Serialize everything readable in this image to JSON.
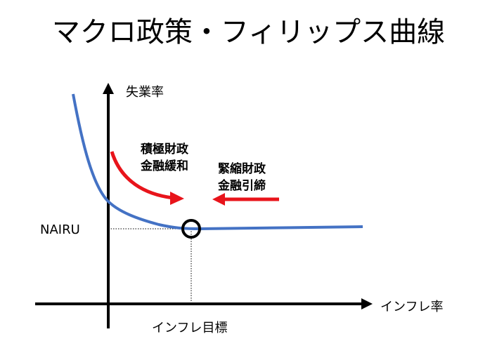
{
  "title": "マクロ政策・フィリップス曲線",
  "axes": {
    "y_label": "失業率",
    "x_label": "インフレ率"
  },
  "markers": {
    "nairu_label": "NAIRU",
    "inflation_target_label": "インフレ目標"
  },
  "annotations": {
    "expansionary": {
      "line1": "積極財政",
      "line2": "金融緩和",
      "arrow_color": "#e8141b"
    },
    "contractionary": {
      "line1": "緊縮財政",
      "line2": "金融引締",
      "arrow_color": "#e8141b"
    }
  },
  "colors": {
    "curve": "#4472c4",
    "axis": "#000000",
    "target_circle": "#000000"
  }
}
